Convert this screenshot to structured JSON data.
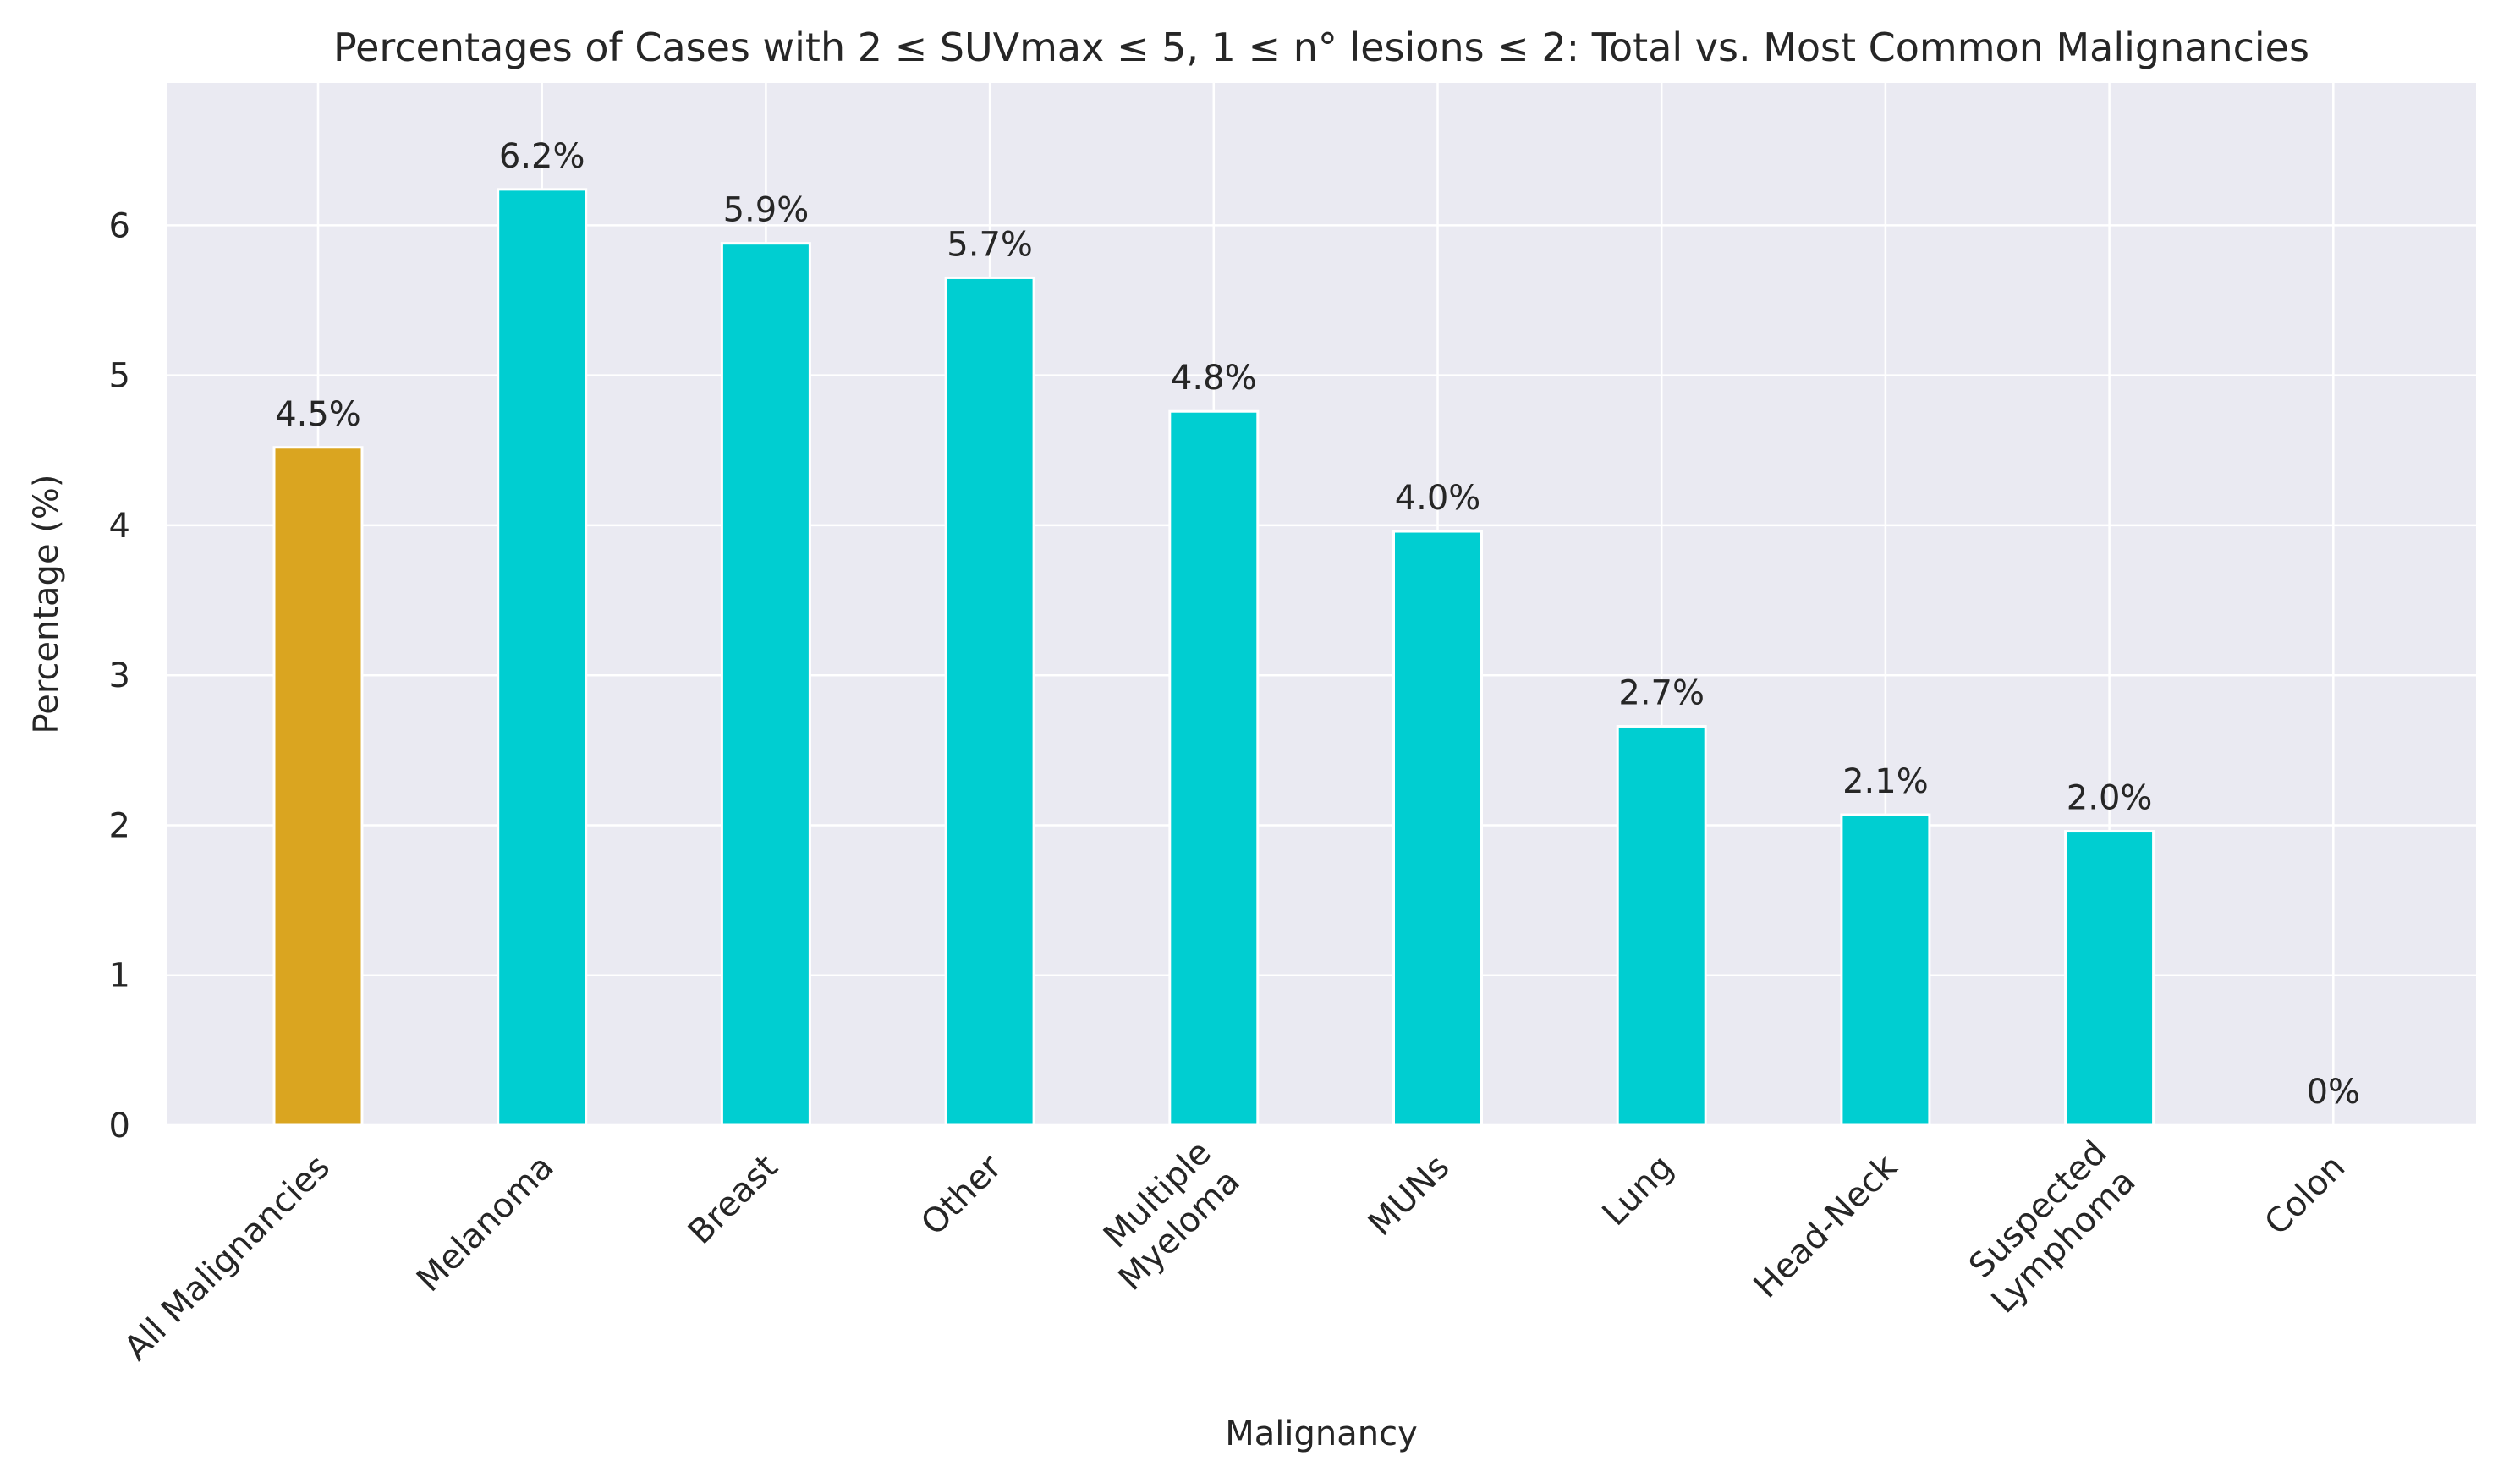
{
  "chart_data": {
    "type": "bar",
    "title": "Percentages of Cases with 2 ≤ SUVmax ≤ 5, 1 ≤ n° lesions ≤ 2: Total vs. Most Common Malignancies",
    "xlabel": "Malignancy",
    "ylabel": "Percentage (%)",
    "ylim": [
      0,
      6.95
    ],
    "yticks": [
      0,
      1,
      2,
      3,
      4,
      5,
      6
    ],
    "grid": true,
    "categories": [
      [
        "All Malignancies"
      ],
      [
        "Melanoma"
      ],
      [
        "Breast"
      ],
      [
        "Other"
      ],
      [
        "Multiple",
        "Myeloma"
      ],
      [
        "MUNs"
      ],
      [
        "Lung"
      ],
      [
        "Head-Neck"
      ],
      [
        "Suspected",
        "Lymphoma"
      ],
      [
        "Colon"
      ]
    ],
    "values": [
      4.52,
      6.24,
      5.88,
      5.65,
      4.76,
      3.96,
      2.66,
      2.07,
      1.96,
      0
    ],
    "labels": [
      "4.5%",
      "6.2%",
      "5.9%",
      "5.7%",
      "4.8%",
      "4.0%",
      "2.7%",
      "2.1%",
      "2.0%",
      "0%"
    ],
    "colors": [
      "#DAA520",
      "#00CED1",
      "#00CED1",
      "#00CED1",
      "#00CED1",
      "#00CED1",
      "#00CED1",
      "#00CED1",
      "#00CED1",
      "#00CED1"
    ],
    "background": "#EAEAF2",
    "grid_color": "#FFFFFF"
  }
}
